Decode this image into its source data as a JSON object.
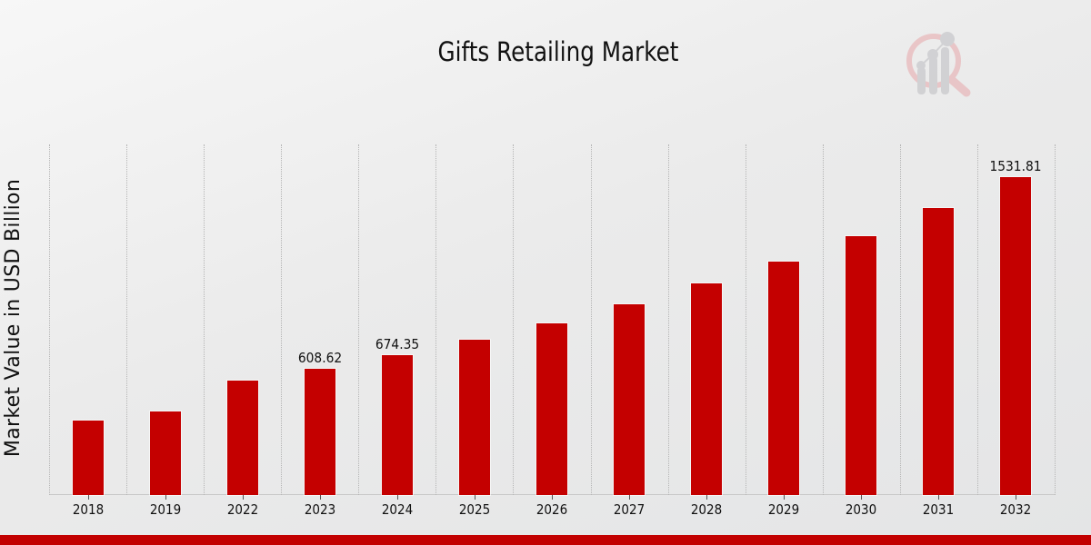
{
  "chart_data": {
    "type": "bar",
    "title": "Gifts Retailing Market",
    "xlabel": "",
    "ylabel": "Market Value in USD Billion",
    "categories": [
      "2018",
      "2019",
      "2022",
      "2023",
      "2024",
      "2025",
      "2026",
      "2027",
      "2028",
      "2029",
      "2030",
      "2031",
      "2032"
    ],
    "values": [
      359,
      403,
      551,
      608.62,
      674.35,
      748,
      827,
      919,
      1020,
      1125,
      1247,
      1383,
      1531.81
    ],
    "data_labels": {
      "2023": "608.62",
      "2024": "674.35",
      "2032": "1531.81"
    },
    "ylim": [
      0,
      1690
    ],
    "grid": {
      "vertical": true,
      "horizontal": false,
      "style": "dotted"
    },
    "legend": null,
    "bar_color": "#c40000"
  },
  "colors": {
    "bar": "#c40000",
    "footer": "#c20000",
    "background": "#ebebeb"
  }
}
